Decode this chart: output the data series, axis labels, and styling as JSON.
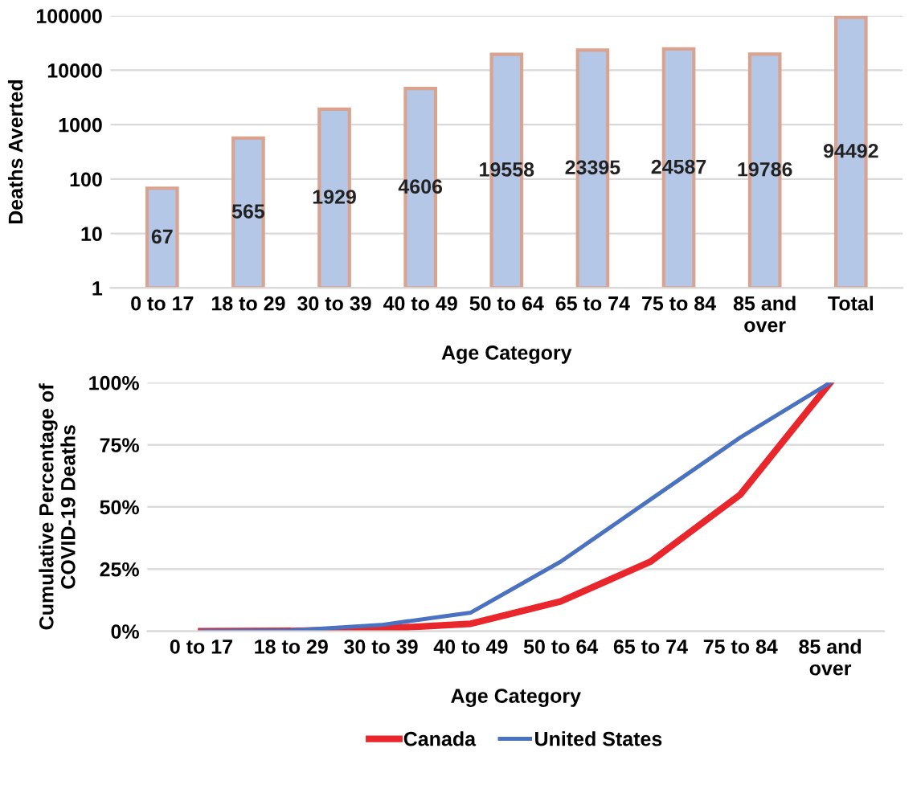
{
  "chart_data": [
    {
      "type": "bar",
      "xlabel": "Age Category",
      "ylabel": "Deaths Averted",
      "categories": [
        "0 to 17",
        "18 to 29",
        "30 to 39",
        "40 to 49",
        "50 to 64",
        "65 to 74",
        "75 to 84",
        "85 and\nover",
        "Total"
      ],
      "values": [
        67,
        565,
        1929,
        4606,
        19558,
        23395,
        24587,
        19786,
        94492
      ],
      "color": "#b4c7e7",
      "log": true,
      "ylim": [
        1,
        100000
      ],
      "yticks": [
        1,
        10,
        100,
        1000,
        10000,
        100000
      ],
      "grid": "y",
      "data_labels": true
    },
    {
      "type": "line",
      "xlabel": "Age Category",
      "ylabel": "Cumulative Percentage of\nCOVID-19 Deaths",
      "categories": [
        "0 to 17",
        "18 to 29",
        "30 to 39",
        "40 to 49",
        "50 to 64",
        "65 to 74",
        "75 to 84",
        "85 and\nover"
      ],
      "series": [
        {
          "name": "Canada",
          "color": "#e8262b",
          "values": [
            0,
            0.1,
            1,
            3,
            12,
            28,
            55,
            100
          ]
        },
        {
          "name": "United States",
          "color": "#4a72c0",
          "values": [
            0,
            0.3,
            2.5,
            7.5,
            28,
            53,
            78,
            100
          ]
        }
      ],
      "ylim": [
        0,
        100
      ],
      "yticks": [
        {
          "value": 0,
          "label": "0%"
        },
        {
          "value": 25,
          "label": "25%"
        },
        {
          "value": 50,
          "label": "50%"
        },
        {
          "value": 75,
          "label": "75%"
        },
        {
          "value": 100,
          "label": "100%"
        }
      ],
      "grid": "y",
      "legend": "bottom",
      "marker": "none",
      "line_style": "solid"
    }
  ]
}
